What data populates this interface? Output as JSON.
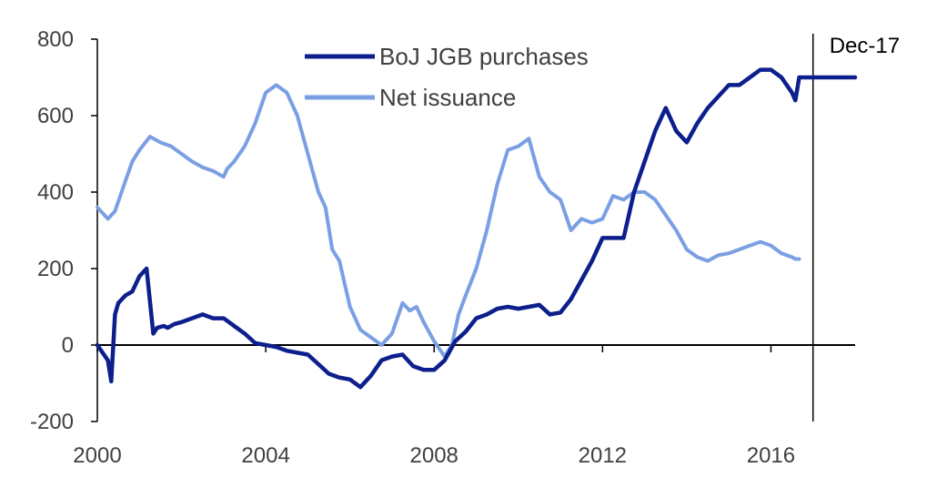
{
  "chart_data": {
    "type": "line",
    "title": "",
    "xlabel": "",
    "ylabel": "",
    "xlim": [
      2000,
      2018
    ],
    "ylim": [
      -200,
      800
    ],
    "x_ticks": [
      2000,
      2004,
      2008,
      2012,
      2016
    ],
    "y_ticks": [
      -200,
      0,
      200,
      400,
      600,
      800
    ],
    "x_tick_labels": [
      "2000",
      "2004",
      "2008",
      "2012",
      "2016"
    ],
    "y_tick_labels": [
      "-200",
      "0",
      "200",
      "400",
      "600",
      "800"
    ],
    "grid": false,
    "legend_position": "top-center",
    "annotation": {
      "x": 2017,
      "label": "Dec-17"
    },
    "series": [
      {
        "name": "BoJ JGB purchases",
        "color": "#0d1f8c",
        "x": [
          2000.0,
          2000.25,
          2000.33,
          2000.42,
          2000.5,
          2000.67,
          2000.83,
          2001.0,
          2001.17,
          2001.33,
          2001.42,
          2001.58,
          2001.67,
          2001.83,
          2002.0,
          2002.25,
          2002.5,
          2002.75,
          2003.0,
          2003.25,
          2003.5,
          2003.75,
          2004.0,
          2004.25,
          2004.5,
          2004.75,
          2005.0,
          2005.25,
          2005.5,
          2005.75,
          2006.0,
          2006.25,
          2006.5,
          2006.75,
          2007.0,
          2007.25,
          2007.5,
          2007.75,
          2008.0,
          2008.25,
          2008.5,
          2008.75,
          2009.0,
          2009.25,
          2009.5,
          2009.75,
          2010.0,
          2010.25,
          2010.5,
          2010.75,
          2011.0,
          2011.25,
          2011.5,
          2011.75,
          2012.0,
          2012.25,
          2012.5,
          2012.75,
          2013.0,
          2013.25,
          2013.5,
          2013.75,
          2014.0,
          2014.25,
          2014.5,
          2014.75,
          2015.0,
          2015.25,
          2015.5,
          2015.75,
          2016.0,
          2016.25,
          2016.5,
          2016.58,
          2016.67,
          2017.0,
          2017.5,
          2018.0
        ],
        "values": [
          0,
          -40,
          -95,
          80,
          110,
          130,
          140,
          180,
          200,
          30,
          45,
          50,
          45,
          55,
          60,
          70,
          80,
          70,
          70,
          50,
          30,
          5,
          0,
          -5,
          -15,
          -20,
          -25,
          -50,
          -75,
          -85,
          -90,
          -110,
          -80,
          -40,
          -30,
          -25,
          -55,
          -65,
          -65,
          -40,
          10,
          35,
          70,
          80,
          95,
          100,
          95,
          100,
          105,
          80,
          85,
          120,
          170,
          220,
          280,
          280,
          280,
          400,
          480,
          560,
          620,
          560,
          530,
          580,
          620,
          650,
          680,
          680,
          700,
          720,
          720,
          700,
          660,
          640,
          700,
          700,
          700,
          700
        ]
      },
      {
        "name": "Net issuance",
        "color": "#7b9fe3",
        "x": [
          2000.0,
          2000.25,
          2000.42,
          2000.67,
          2000.83,
          2001.0,
          2001.25,
          2001.5,
          2001.75,
          2002.0,
          2002.25,
          2002.5,
          2002.75,
          2003.0,
          2003.08,
          2003.25,
          2003.5,
          2003.75,
          2004.0,
          2004.25,
          2004.5,
          2004.75,
          2005.0,
          2005.25,
          2005.42,
          2005.58,
          2005.75,
          2006.0,
          2006.25,
          2006.5,
          2006.75,
          2007.0,
          2007.25,
          2007.42,
          2007.58,
          2007.75,
          2008.0,
          2008.25,
          2008.42,
          2008.58,
          2008.75,
          2009.0,
          2009.25,
          2009.5,
          2009.75,
          2010.0,
          2010.25,
          2010.5,
          2010.75,
          2011.0,
          2011.25,
          2011.5,
          2011.75,
          2012.0,
          2012.25,
          2012.5,
          2012.75,
          2013.0,
          2013.25,
          2013.5,
          2013.75,
          2014.0,
          2014.25,
          2014.5,
          2014.75,
          2015.0,
          2015.25,
          2015.5,
          2015.75,
          2016.0,
          2016.25,
          2016.5,
          2016.58,
          2016.67
        ],
        "values": [
          360,
          330,
          350,
          430,
          480,
          510,
          545,
          530,
          520,
          500,
          480,
          465,
          455,
          440,
          460,
          480,
          520,
          580,
          660,
          680,
          660,
          600,
          500,
          400,
          360,
          250,
          220,
          100,
          40,
          20,
          0,
          30,
          110,
          90,
          100,
          60,
          10,
          -30,
          0,
          80,
          130,
          200,
          300,
          420,
          510,
          520,
          540,
          440,
          400,
          380,
          300,
          330,
          320,
          330,
          390,
          380,
          400,
          400,
          380,
          340,
          300,
          250,
          230,
          220,
          235,
          240,
          250,
          260,
          270,
          260,
          240,
          230,
          225,
          225
        ]
      }
    ]
  }
}
